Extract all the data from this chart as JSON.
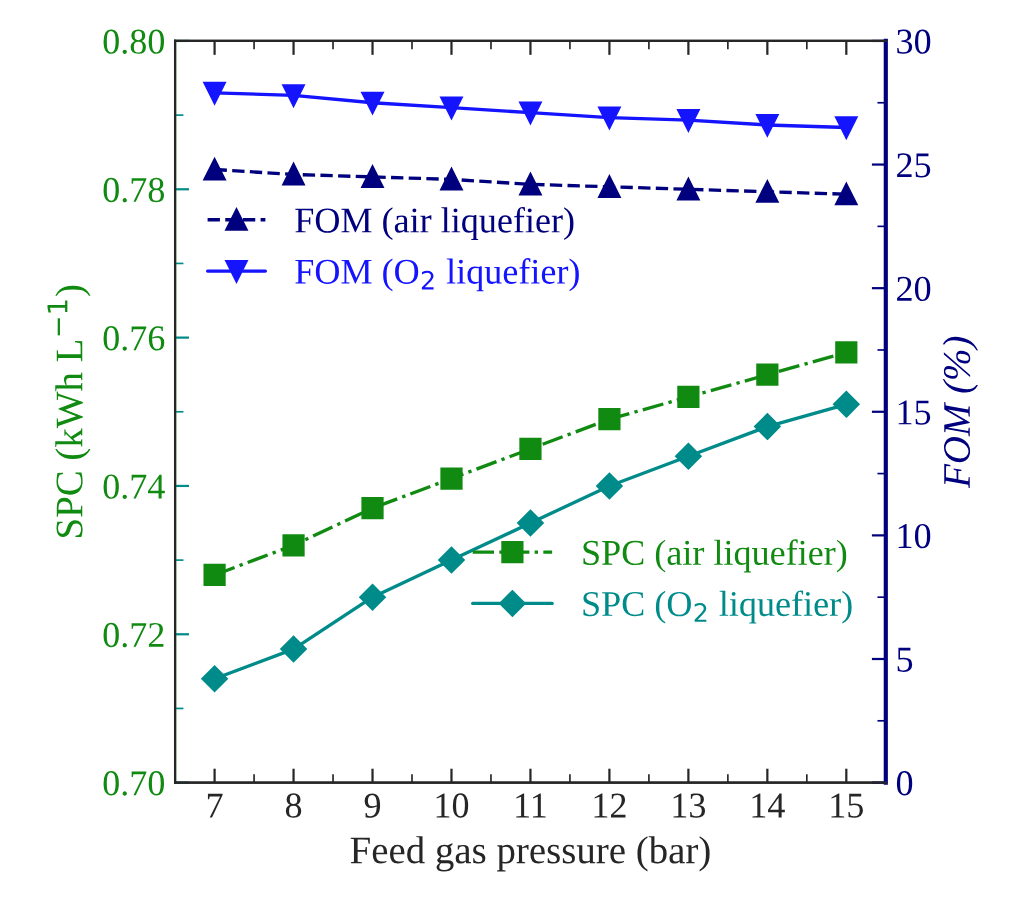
{
  "chart_data": {
    "type": "line",
    "xlabel": "Feed gas pressure (bar)",
    "ylabel": "SPC (kWh L$^{−1}$)",
    "y2label": "FOM (%)",
    "x": [
      7,
      8,
      9,
      10,
      11,
      12,
      13,
      14,
      15
    ],
    "xlim": [
      6.5,
      15.5
    ],
    "xticks": [
      7,
      8,
      9,
      10,
      11,
      12,
      13,
      14,
      15
    ],
    "ylim": [
      0.7,
      0.8
    ],
    "yticks": [
      {
        "value": 0.7,
        "label": "0.70"
      },
      {
        "value": 0.72,
        "label": "0.72"
      },
      {
        "value": 0.74,
        "label": "0.74"
      },
      {
        "value": 0.76,
        "label": "0.76"
      },
      {
        "value": 0.78,
        "label": "0.78"
      },
      {
        "value": 0.8,
        "label": "0.80"
      }
    ],
    "y2lim": [
      0,
      30
    ],
    "y2ticks": [
      0,
      5,
      10,
      15,
      20,
      25,
      30
    ],
    "legend": "left",
    "grid": false,
    "series": [
      {
        "name": "FOM (air liquefier)",
        "color": "#00007f",
        "axis": "y2",
        "marker": "triangle",
        "line_style": "dashed",
        "values": [
          24.8,
          24.6,
          24.5,
          24.4,
          24.2,
          24.1,
          24.0,
          23.9,
          23.8
        ]
      },
      {
        "name": "FOM (O$_{2}$ liquefier)",
        "color": "#1414ff",
        "axis": "y2",
        "marker": "triangle_down",
        "line_style": "solid",
        "values": [
          27.9,
          27.8,
          27.5,
          27.3,
          27.1,
          26.9,
          26.8,
          26.6,
          26.5
        ]
      },
      {
        "name": "SPC (air liquefier)",
        "color": "#108a10",
        "axis": "y",
        "marker": "square",
        "line_style": "dashdot",
        "values": [
          0.728,
          0.732,
          0.737,
          0.741,
          0.745,
          0.749,
          0.752,
          0.755,
          0.758
        ]
      },
      {
        "name": "SPC (O$_{2}$ liquefier)",
        "color": "#008b8b",
        "axis": "y",
        "marker": "diamond",
        "line_style": "solid",
        "values": [
          0.714,
          0.718,
          0.725,
          0.73,
          0.735,
          0.74,
          0.744,
          0.748,
          0.751
        ]
      }
    ]
  }
}
